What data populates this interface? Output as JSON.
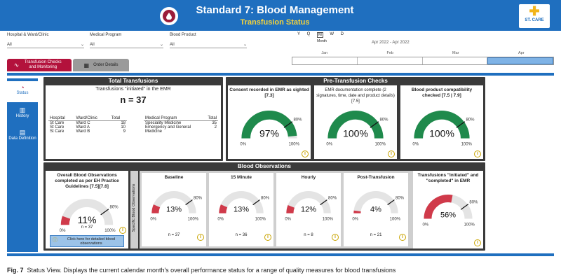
{
  "header": {
    "title": "Standard 7: Blood Management",
    "subtitle": "Transfusion Status",
    "brand": "ST. CARE",
    "icon": "blood-drop-icon"
  },
  "filters": [
    {
      "label": "Hospital & Ward/Clinic",
      "value": "All"
    },
    {
      "label": "Medical Program",
      "value": "All"
    },
    {
      "label": "Blood Product",
      "value": "All"
    }
  ],
  "period": {
    "granularity": [
      "Y",
      "Q",
      "M",
      "W",
      "D"
    ],
    "selected": "M",
    "label": "Month",
    "range": "Apr 2022 - Apr 2022",
    "months": [
      "Jan",
      "Feb",
      "Mar",
      "Apr"
    ],
    "selected_month": "Apr"
  },
  "tabs": [
    {
      "label": "Transfusion Checks and Monitoring",
      "active": true
    },
    {
      "label": "Order Details",
      "active": false
    }
  ],
  "sidebar": [
    {
      "label": "Status",
      "icon": "status-icon",
      "active": true
    },
    {
      "label": "History",
      "icon": "bar-chart-icon",
      "active": false
    },
    {
      "label": "Data Definition",
      "icon": "document-icon",
      "active": false
    }
  ],
  "total_transfusions": {
    "title": "Total Transfusions",
    "caption": "Transfusions \"initiated\" in the EMR",
    "count": "n = 37",
    "hospital_table": {
      "headers": [
        "Hospital",
        "Ward/Clinic",
        "Total"
      ],
      "rows": [
        [
          "St Care",
          "Ward C",
          "18"
        ],
        [
          "St Care",
          "Ward A",
          "10"
        ],
        [
          "St Care",
          "Ward B",
          "9"
        ]
      ]
    },
    "program_table": {
      "headers": [
        "Medical Program",
        "Total"
      ],
      "rows": [
        [
          "Speciality Medicine",
          "35"
        ],
        [
          "Emergency and General Medicine",
          "2"
        ]
      ]
    }
  },
  "pre_checks": {
    "title": "Pre-Transfusion Checks",
    "gauges": [
      {
        "title": "Consent recorded in EMR as sighted [7.3]",
        "value": 97,
        "display": "97%"
      },
      {
        "title": "EMR documentation complete (2 signatures, time, date and product details) [7.5]",
        "value": 100,
        "display": "100%"
      },
      {
        "title": "Blood product compatibility checked [7.5 | 7.9]",
        "value": 100,
        "display": "100%"
      }
    ]
  },
  "observations": {
    "title": "Blood Observations",
    "overall": {
      "title": "Overall Blood Observations completed as per EH Practice Guidelines [7.5][7.6]",
      "value": 11,
      "display": "11%",
      "n": "n = 37"
    },
    "detail_button": "Click here for detailed blood observations",
    "vertical_label": "Specific Blood Observations",
    "gauges": [
      {
        "title": "Baseline",
        "value": 13,
        "display": "13%",
        "n": "n = 37"
      },
      {
        "title": "15 Minute",
        "value": 13,
        "display": "13%",
        "n": "n = 36"
      },
      {
        "title": "Hourly",
        "value": 12,
        "display": "12%",
        "n": "n = 8"
      },
      {
        "title": "Post-Transfusion",
        "value": 4,
        "display": "4%",
        "n": "n = 21"
      }
    ],
    "completed": {
      "title": "Transfusions \"initiated\" and \"completed\" in EMR",
      "value": 56,
      "display": "56%"
    }
  },
  "gauge_scale": {
    "min": "0%",
    "target": "80%",
    "max": "100%",
    "target_value": 80
  },
  "colors": {
    "green": "#1f8a4c",
    "red": "#d03a4a",
    "track": "#e4e4e4",
    "header": "#1f6fbf",
    "tab_active": "#b3123c",
    "accent": "#f5d33a"
  },
  "caption": {
    "fig": "Fig. 7",
    "text": "Status View. Displays the current calendar month's overall performance status for a range of quality measures for blood transfusions"
  }
}
